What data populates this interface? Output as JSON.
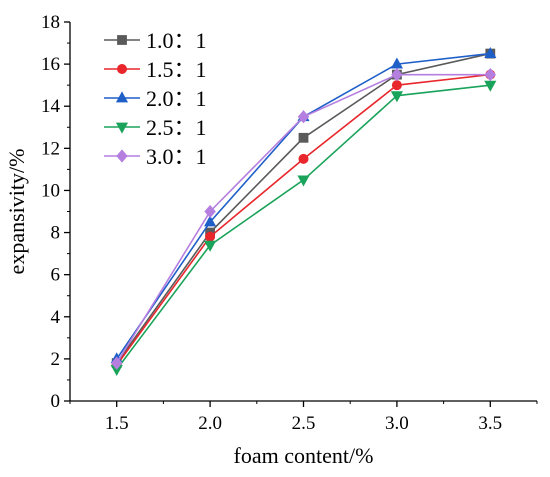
{
  "chart_data": {
    "type": "line",
    "xlabel": "foam content/%",
    "ylabel": "expansivity/%",
    "x": [
      1.5,
      2.0,
      2.5,
      3.0,
      3.5
    ],
    "xticks": [
      "1.5",
      "2.0",
      "2.5",
      "3.0",
      "3.5"
    ],
    "xlim": [
      1.25,
      3.75
    ],
    "ylim": [
      0,
      18
    ],
    "yticks": [
      "0",
      "2",
      "4",
      "6",
      "8",
      "10",
      "12",
      "14",
      "16",
      "18"
    ],
    "grid": false,
    "legend_position": "top-left",
    "series": [
      {
        "name": "1.0：1",
        "color": "#5a5a5a",
        "marker": "square",
        "values": [
          1.8,
          8.0,
          12.5,
          15.5,
          16.5
        ]
      },
      {
        "name": "1.5：1",
        "color": "#e8262b",
        "marker": "circle",
        "values": [
          1.7,
          7.8,
          11.5,
          15.0,
          15.5
        ]
      },
      {
        "name": "2.0：1",
        "color": "#1f5fc8",
        "marker": "triangle-up",
        "values": [
          2.0,
          8.5,
          13.5,
          16.0,
          16.5
        ]
      },
      {
        "name": "2.5：1",
        "color": "#1aa35a",
        "marker": "triangle-down",
        "values": [
          1.5,
          7.4,
          10.5,
          14.5,
          15.0
        ]
      },
      {
        "name": "3.0：1",
        "color": "#b57fe0",
        "marker": "diamond",
        "values": [
          1.8,
          9.0,
          13.5,
          15.5,
          15.5
        ]
      }
    ]
  }
}
